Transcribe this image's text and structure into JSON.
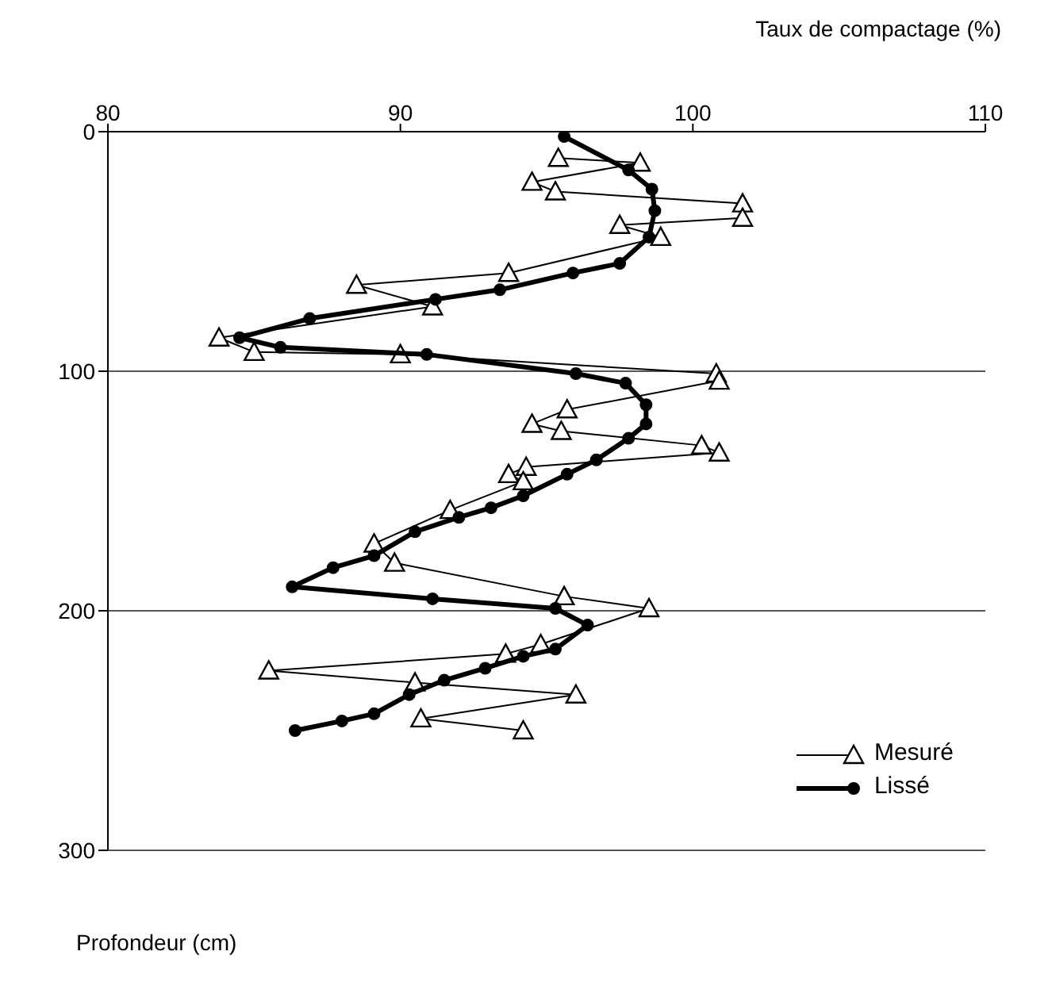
{
  "chart_data": {
    "type": "line",
    "xlabel": "Taux de compactage (%)",
    "ylabel": "Profondeur (cm)",
    "xlim": [
      80,
      110
    ],
    "xticks": [
      80,
      90,
      100,
      110
    ],
    "ylim": [
      300,
      0
    ],
    "yticks": [
      0,
      100,
      200,
      300
    ],
    "grid": "y",
    "legend": "bottom right",
    "series": [
      {
        "name": "Mesuré",
        "color": "#000000",
        "marker": "triangle",
        "x": [
          95.4,
          98.2,
          94.5,
          95.3,
          101.7,
          101.7,
          97.5,
          98.9,
          93.7,
          88.5,
          91.1,
          83.8,
          85,
          90,
          100.8,
          100.9,
          95.7,
          94.5,
          95.5,
          100.3,
          100.9,
          94.3,
          93.7,
          94.2,
          91.7,
          89.1,
          89.8,
          95.6,
          98.5,
          94.8,
          93.6,
          85.5,
          90.5,
          96,
          90.7,
          94.2
        ],
        "values": [
          11,
          13,
          21,
          25,
          30,
          36,
          39,
          44,
          59,
          64,
          73,
          86,
          92,
          93,
          101,
          104,
          116,
          122,
          125,
          131,
          134,
          140,
          143,
          146,
          158,
          172,
          180,
          194,
          199,
          214,
          218,
          225,
          230,
          235,
          245,
          250
        ]
      },
      {
        "name": "Lissé",
        "color": "#000000",
        "marker": "circle",
        "x": [
          95.6,
          97.8,
          98.6,
          98.7,
          98.5,
          97.5,
          95.9,
          93.4,
          91.2,
          86.9,
          84.5,
          85.9,
          90.9,
          96,
          97.7,
          98.4,
          98.4,
          97.8,
          96.7,
          95.7,
          94.2,
          93.1,
          92,
          90.5,
          89.1,
          87.7,
          86.3,
          91.1,
          95.3,
          96.4,
          95.3,
          94.2,
          92.9,
          91.5,
          90.3,
          89.1,
          88,
          86.4
        ],
        "values": [
          2,
          16,
          24,
          33,
          44,
          55,
          59,
          66,
          70,
          78,
          86,
          90,
          93,
          101,
          105,
          114,
          122,
          128,
          137,
          143,
          152,
          157,
          161,
          167,
          177,
          182,
          190,
          195,
          199,
          206,
          216,
          219,
          224,
          229,
          235,
          243,
          246,
          250
        ]
      }
    ]
  }
}
